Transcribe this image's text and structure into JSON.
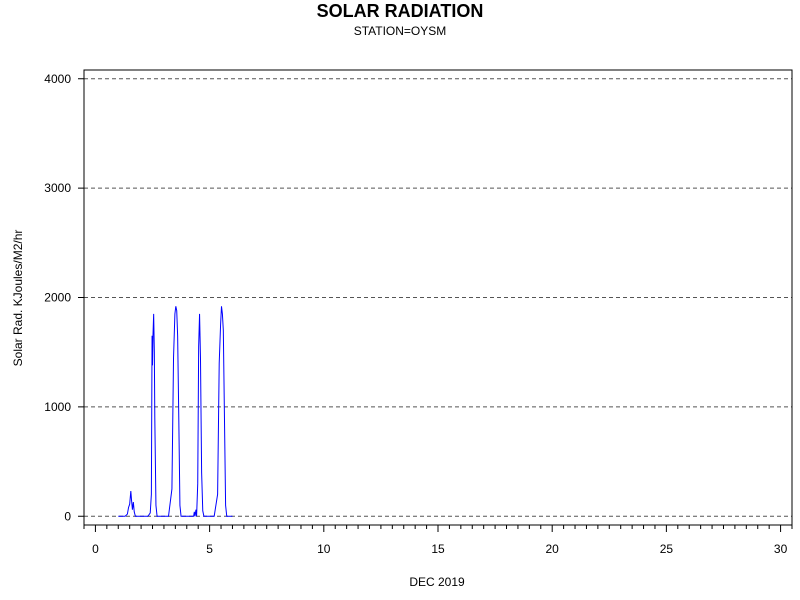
{
  "chart_data": {
    "type": "line",
    "title": "SOLAR RADIATION",
    "subtitle": "STATION=OYSM",
    "xlabel": "DEC 2019",
    "ylabel": "Solar Rad. KJoules/M2/hr",
    "xlim": [
      -0.5,
      30.5
    ],
    "ylim": [
      -80,
      4080
    ],
    "x_ticks": [
      0,
      5,
      10,
      15,
      20,
      25,
      30
    ],
    "x_minor_step": 0.5,
    "y_ticks": [
      0,
      1000,
      2000,
      3000,
      4000
    ],
    "grid": "horizontal-dashed",
    "series": [
      {
        "color": "#0000ff",
        "x": [
          1.0,
          1.3,
          1.4,
          1.45,
          1.5,
          1.55,
          1.58,
          1.62,
          1.66,
          1.7,
          1.75,
          1.8,
          2.0,
          2.3,
          2.4,
          2.45,
          2.48,
          2.5,
          2.52,
          2.55,
          2.58,
          2.6,
          2.65,
          2.7,
          2.75,
          3.0,
          3.2,
          3.35,
          3.42,
          3.48,
          3.52,
          3.56,
          3.6,
          3.65,
          3.7,
          3.75,
          4.0,
          4.2,
          4.3,
          4.33,
          4.36,
          4.4,
          4.43,
          4.48,
          4.52,
          4.56,
          4.6,
          4.65,
          4.7,
          4.75,
          5.0,
          5.2,
          5.35,
          5.42,
          5.48,
          5.52,
          5.56,
          5.6,
          5.65,
          5.7,
          5.75,
          5.85,
          6.0
        ],
        "y": [
          0,
          0,
          20,
          80,
          110,
          230,
          150,
          60,
          130,
          40,
          0,
          0,
          0,
          0,
          30,
          200,
          1650,
          1380,
          1650,
          1850,
          1500,
          900,
          100,
          0,
          0,
          0,
          0,
          250,
          1450,
          1850,
          1920,
          1880,
          1650,
          900,
          100,
          0,
          0,
          0,
          0,
          40,
          0,
          60,
          0,
          300,
          1550,
          1850,
          1450,
          400,
          50,
          0,
          0,
          0,
          200,
          1400,
          1750,
          1920,
          1850,
          1700,
          900,
          100,
          0,
          0,
          0
        ]
      }
    ]
  }
}
